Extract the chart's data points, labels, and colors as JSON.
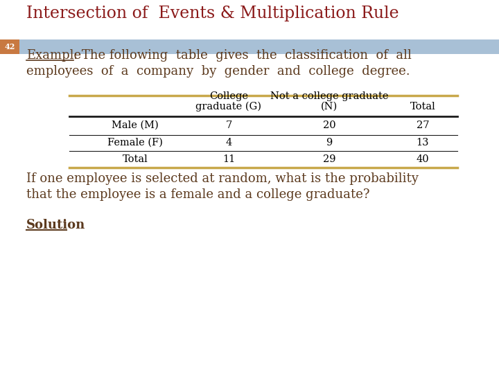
{
  "title": "Intersection of  Events & Multiplication Rule",
  "title_color": "#8B1A1A",
  "title_fontsize": 17,
  "slide_number": "42",
  "slide_number_bg": "#C87941",
  "header_bar_color": "#A8C0D6",
  "bg_color": "#FFFFFF",
  "body_text_color": "#5C3A1E",
  "table_header_col1_line1": "College",
  "table_header_col1_line2": "graduate (G)",
  "table_header_col2_line1": "Not a college graduate",
  "table_header_col2_line2": "(N)",
  "table_header_col3": "Total",
  "table_rows": [
    [
      "Male (M)",
      "7",
      "20",
      "27"
    ],
    [
      "Female (F)",
      "4",
      "9",
      "13"
    ],
    [
      "Total",
      "11",
      "29",
      "40"
    ]
  ],
  "table_line_color_gold": "#C8A84B",
  "table_line_color_black": "#1A1A1A",
  "question_line1": "If one employee is selected at random, what is the probability",
  "question_line2": "that the employee is a female and a college graduate?",
  "solution_text": "Solution"
}
